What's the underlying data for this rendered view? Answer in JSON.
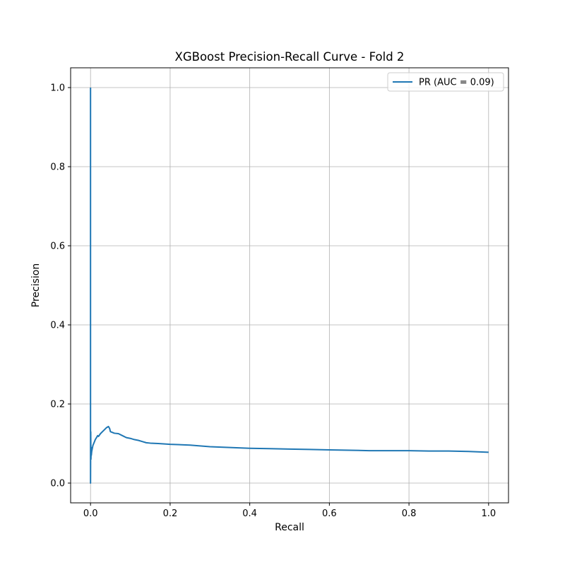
{
  "chart_data": {
    "type": "line",
    "title": "XGBoost Precision-Recall Curve - Fold 2",
    "xlabel": "Recall",
    "ylabel": "Precision",
    "xlim": [
      -0.05,
      1.05
    ],
    "ylim": [
      -0.05,
      1.05
    ],
    "xticks": [
      0.0,
      0.2,
      0.4,
      0.6,
      0.8,
      1.0
    ],
    "yticks": [
      0.0,
      0.2,
      0.4,
      0.6,
      0.8,
      1.0
    ],
    "xtick_labels": [
      "0.0",
      "0.2",
      "0.4",
      "0.6",
      "0.8",
      "1.0"
    ],
    "ytick_labels": [
      "0.0",
      "0.2",
      "0.4",
      "0.6",
      "0.8",
      "1.0"
    ],
    "grid": true,
    "legend_position": "top-right",
    "series": [
      {
        "name": "PR (AUC = 0.09)",
        "color": "#1f77b4",
        "x": [
          0.0,
          0.0,
          0.0005,
          0.001,
          0.002,
          0.002,
          0.003,
          0.004,
          0.005,
          0.006,
          0.008,
          0.01,
          0.012,
          0.015,
          0.018,
          0.02,
          0.025,
          0.03,
          0.035,
          0.04,
          0.045,
          0.048,
          0.05,
          0.055,
          0.06,
          0.07,
          0.08,
          0.09,
          0.1,
          0.11,
          0.12,
          0.13,
          0.14,
          0.15,
          0.17,
          0.2,
          0.25,
          0.3,
          0.35,
          0.4,
          0.45,
          0.5,
          0.55,
          0.6,
          0.65,
          0.7,
          0.75,
          0.8,
          0.85,
          0.9,
          0.95,
          1.0
        ],
        "y": [
          1.0,
          0.0,
          0.13,
          0.06,
          0.09,
          0.07,
          0.08,
          0.085,
          0.09,
          0.095,
          0.1,
          0.105,
          0.11,
          0.115,
          0.12,
          0.118,
          0.125,
          0.13,
          0.135,
          0.14,
          0.143,
          0.138,
          0.13,
          0.128,
          0.126,
          0.125,
          0.12,
          0.115,
          0.113,
          0.11,
          0.108,
          0.105,
          0.102,
          0.101,
          0.1,
          0.098,
          0.096,
          0.092,
          0.09,
          0.088,
          0.087,
          0.086,
          0.085,
          0.084,
          0.083,
          0.082,
          0.082,
          0.082,
          0.081,
          0.081,
          0.08,
          0.078
        ]
      }
    ]
  }
}
